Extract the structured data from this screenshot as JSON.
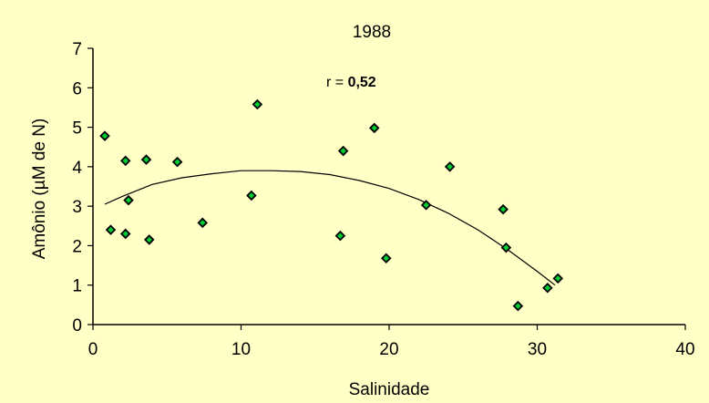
{
  "chart_data": {
    "type": "scatter",
    "title": "1988",
    "xlabel": "Salinidade",
    "ylabel": "Amônio (µM de N)",
    "xlim": [
      0,
      40
    ],
    "ylim": [
      0,
      7
    ],
    "xticks": [
      0,
      10,
      20,
      30,
      40
    ],
    "yticks": [
      0,
      1,
      2,
      3,
      4,
      5,
      6,
      7
    ],
    "grid": false,
    "annotation": {
      "label": "r = ",
      "value": "0,52"
    },
    "colors": {
      "background": "#ffffc6",
      "marker_fill": "#00cc33",
      "marker_stroke": "#000000",
      "trend": "#000000"
    },
    "series": [
      {
        "points": [
          [
            0.8,
            4.78
          ],
          [
            1.2,
            2.4
          ],
          [
            2.2,
            4.15
          ],
          [
            2.4,
            3.15
          ],
          [
            2.2,
            2.3
          ],
          [
            3.6,
            4.18
          ],
          [
            3.8,
            2.15
          ],
          [
            5.7,
            4.12
          ],
          [
            7.4,
            2.58
          ],
          [
            10.7,
            3.27
          ],
          [
            11.1,
            5.58
          ],
          [
            16.7,
            2.25
          ],
          [
            16.9,
            4.4
          ],
          [
            19.0,
            4.98
          ],
          [
            19.8,
            1.68
          ],
          [
            22.5,
            3.03
          ],
          [
            24.1,
            4.0
          ],
          [
            27.7,
            2.92
          ],
          [
            27.9,
            1.95
          ],
          [
            28.7,
            0.47
          ],
          [
            30.7,
            0.93
          ],
          [
            31.4,
            1.17
          ]
        ]
      }
    ],
    "trendline": {
      "type": "polynomial",
      "points": [
        [
          0.8,
          3.05
        ],
        [
          2,
          3.25
        ],
        [
          4,
          3.55
        ],
        [
          6,
          3.72
        ],
        [
          8,
          3.82
        ],
        [
          10,
          3.9
        ],
        [
          12,
          3.9
        ],
        [
          14,
          3.88
        ],
        [
          16,
          3.8
        ],
        [
          18,
          3.65
        ],
        [
          20,
          3.45
        ],
        [
          22,
          3.17
        ],
        [
          24,
          2.82
        ],
        [
          26,
          2.4
        ],
        [
          28,
          1.9
        ],
        [
          30,
          1.35
        ],
        [
          31.2,
          1.0
        ]
      ]
    }
  }
}
